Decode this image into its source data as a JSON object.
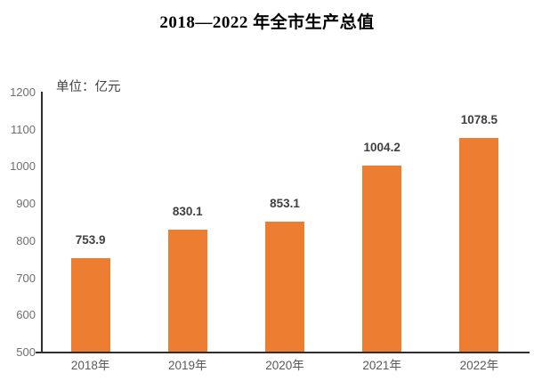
{
  "page": {
    "background_color": "#ffffff"
  },
  "chart_data": {
    "type": "bar",
    "title": "2018—2022 年全市生产总值",
    "unit_label": "单位：亿元",
    "categories": [
      "2018年",
      "2019年",
      "2020年",
      "2021年",
      "2022年"
    ],
    "values": [
      753.9,
      830.1,
      853.1,
      1004.2,
      1078.5
    ],
    "value_labels": [
      "753.9",
      "830.1",
      "853.1",
      "1004.2",
      "1078.5"
    ],
    "xlabel": "",
    "ylabel": "",
    "ylim": [
      500,
      1200
    ],
    "ytick_interval": 100,
    "yticks": [
      500,
      600,
      700,
      800,
      900,
      1000,
      1100,
      1200
    ],
    "grid": "off",
    "legend": "none",
    "bar_color": "#ED7D31",
    "axis_color": "#2e2e2e",
    "value_label_color": "#404040",
    "ytick_label_color": "#6f6f6f",
    "xtick_label_color": "#595959",
    "title_color": "#000000"
  }
}
